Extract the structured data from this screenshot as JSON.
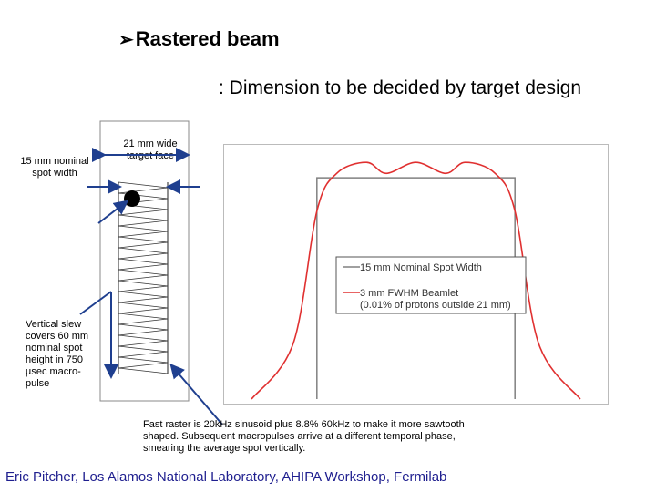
{
  "header": {
    "bullet_icon": "arrow-bullet-icon",
    "title": "Rastered beam",
    "subtitle": ": Dimension to be decided by target design"
  },
  "diagram": {
    "spot_width_label": "15 mm nominal spot width",
    "target_face_label": "21 mm wide target face",
    "slew_label": "Vertical slew covers 60 mm nominal spot height in 750 µsec macro-pulse"
  },
  "chart_data": {
    "type": "line",
    "title": "",
    "xlabel": "",
    "ylabel": "",
    "grid": false,
    "legend_placement": "center",
    "series": [
      {
        "name": "15 mm Nominal Spot Width",
        "color": "#808080",
        "x": [
          0.0,
          0.0,
          1.0,
          1.0
        ],
        "y": [
          0.0,
          1.0,
          1.0,
          0.0
        ]
      },
      {
        "name": "3 mm FWHM Beamlet",
        "color": "#e03030",
        "x": [
          -0.33,
          -0.12,
          0.0,
          0.1,
          0.25,
          0.35,
          0.5,
          0.65,
          0.75,
          0.9,
          1.0,
          1.12,
          1.33
        ],
        "y": [
          0.0,
          0.25,
          0.85,
          1.02,
          1.07,
          1.02,
          1.07,
          1.02,
          1.07,
          1.02,
          0.85,
          0.25,
          0.0
        ]
      }
    ],
    "legend_note": "(0.01% of protons outside 21 mm)"
  },
  "caption": "Fast raster is 20kHz sinusoid plus 8.8% 60kHz to make it more sawtooth shaped.  Subsequent macropulses arrive at a different temporal phase, smearing the average spot vertically.",
  "footer": "Eric Pitcher, Los Alamos National Laboratory, AHIPA Workshop, Fermilab",
  "colors": {
    "arrow": "#1f3f8f",
    "nominal": "#808080",
    "beamlet": "#e03030"
  }
}
